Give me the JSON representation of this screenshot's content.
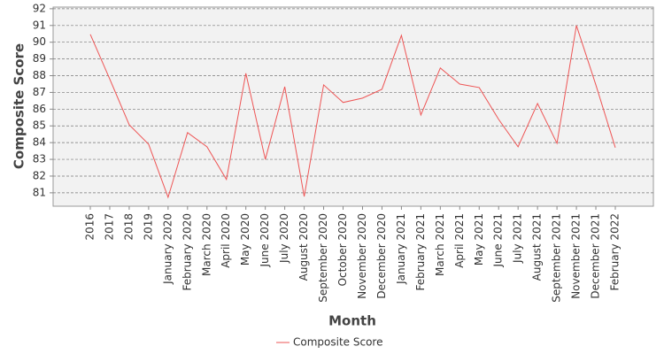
{
  "chart_data": {
    "type": "line",
    "x_label": "Month",
    "y_label": "Composite Score",
    "categories": [
      "2016",
      "2017",
      "2018",
      "2019",
      "January 2020",
      "February 2020",
      "March 2020",
      "April 2020",
      "May 2020",
      "June 2020",
      "July 2020",
      "August 2020",
      "September 2020",
      "October 2020",
      "November 2020",
      "December 2020",
      "January 2021",
      "February 2021",
      "March 2021",
      "April 2021",
      "May 2021",
      "June 2021",
      "July 2021",
      "August 2021",
      "September 2021",
      "November 2021",
      "December 2021",
      "February 2022"
    ],
    "series": [
      {
        "name": "Composite Score",
        "color": "#ee5555",
        "values": [
          90.47,
          87.8,
          85.07,
          83.9,
          80.73,
          84.6,
          83.75,
          81.8,
          88.14,
          83.0,
          87.34,
          80.78,
          87.45,
          86.4,
          86.66,
          87.19,
          90.41,
          85.65,
          88.46,
          87.5,
          87.29,
          85.39,
          83.75,
          86.34,
          83.96,
          91.0,
          87.45,
          83.7
        ]
      }
    ],
    "ylim": [
      80.2,
      92.1
    ],
    "yticks": [
      81,
      82,
      83,
      84,
      85,
      86,
      87,
      88,
      89,
      90,
      91,
      92
    ],
    "grid": true,
    "legend": "bottom"
  }
}
